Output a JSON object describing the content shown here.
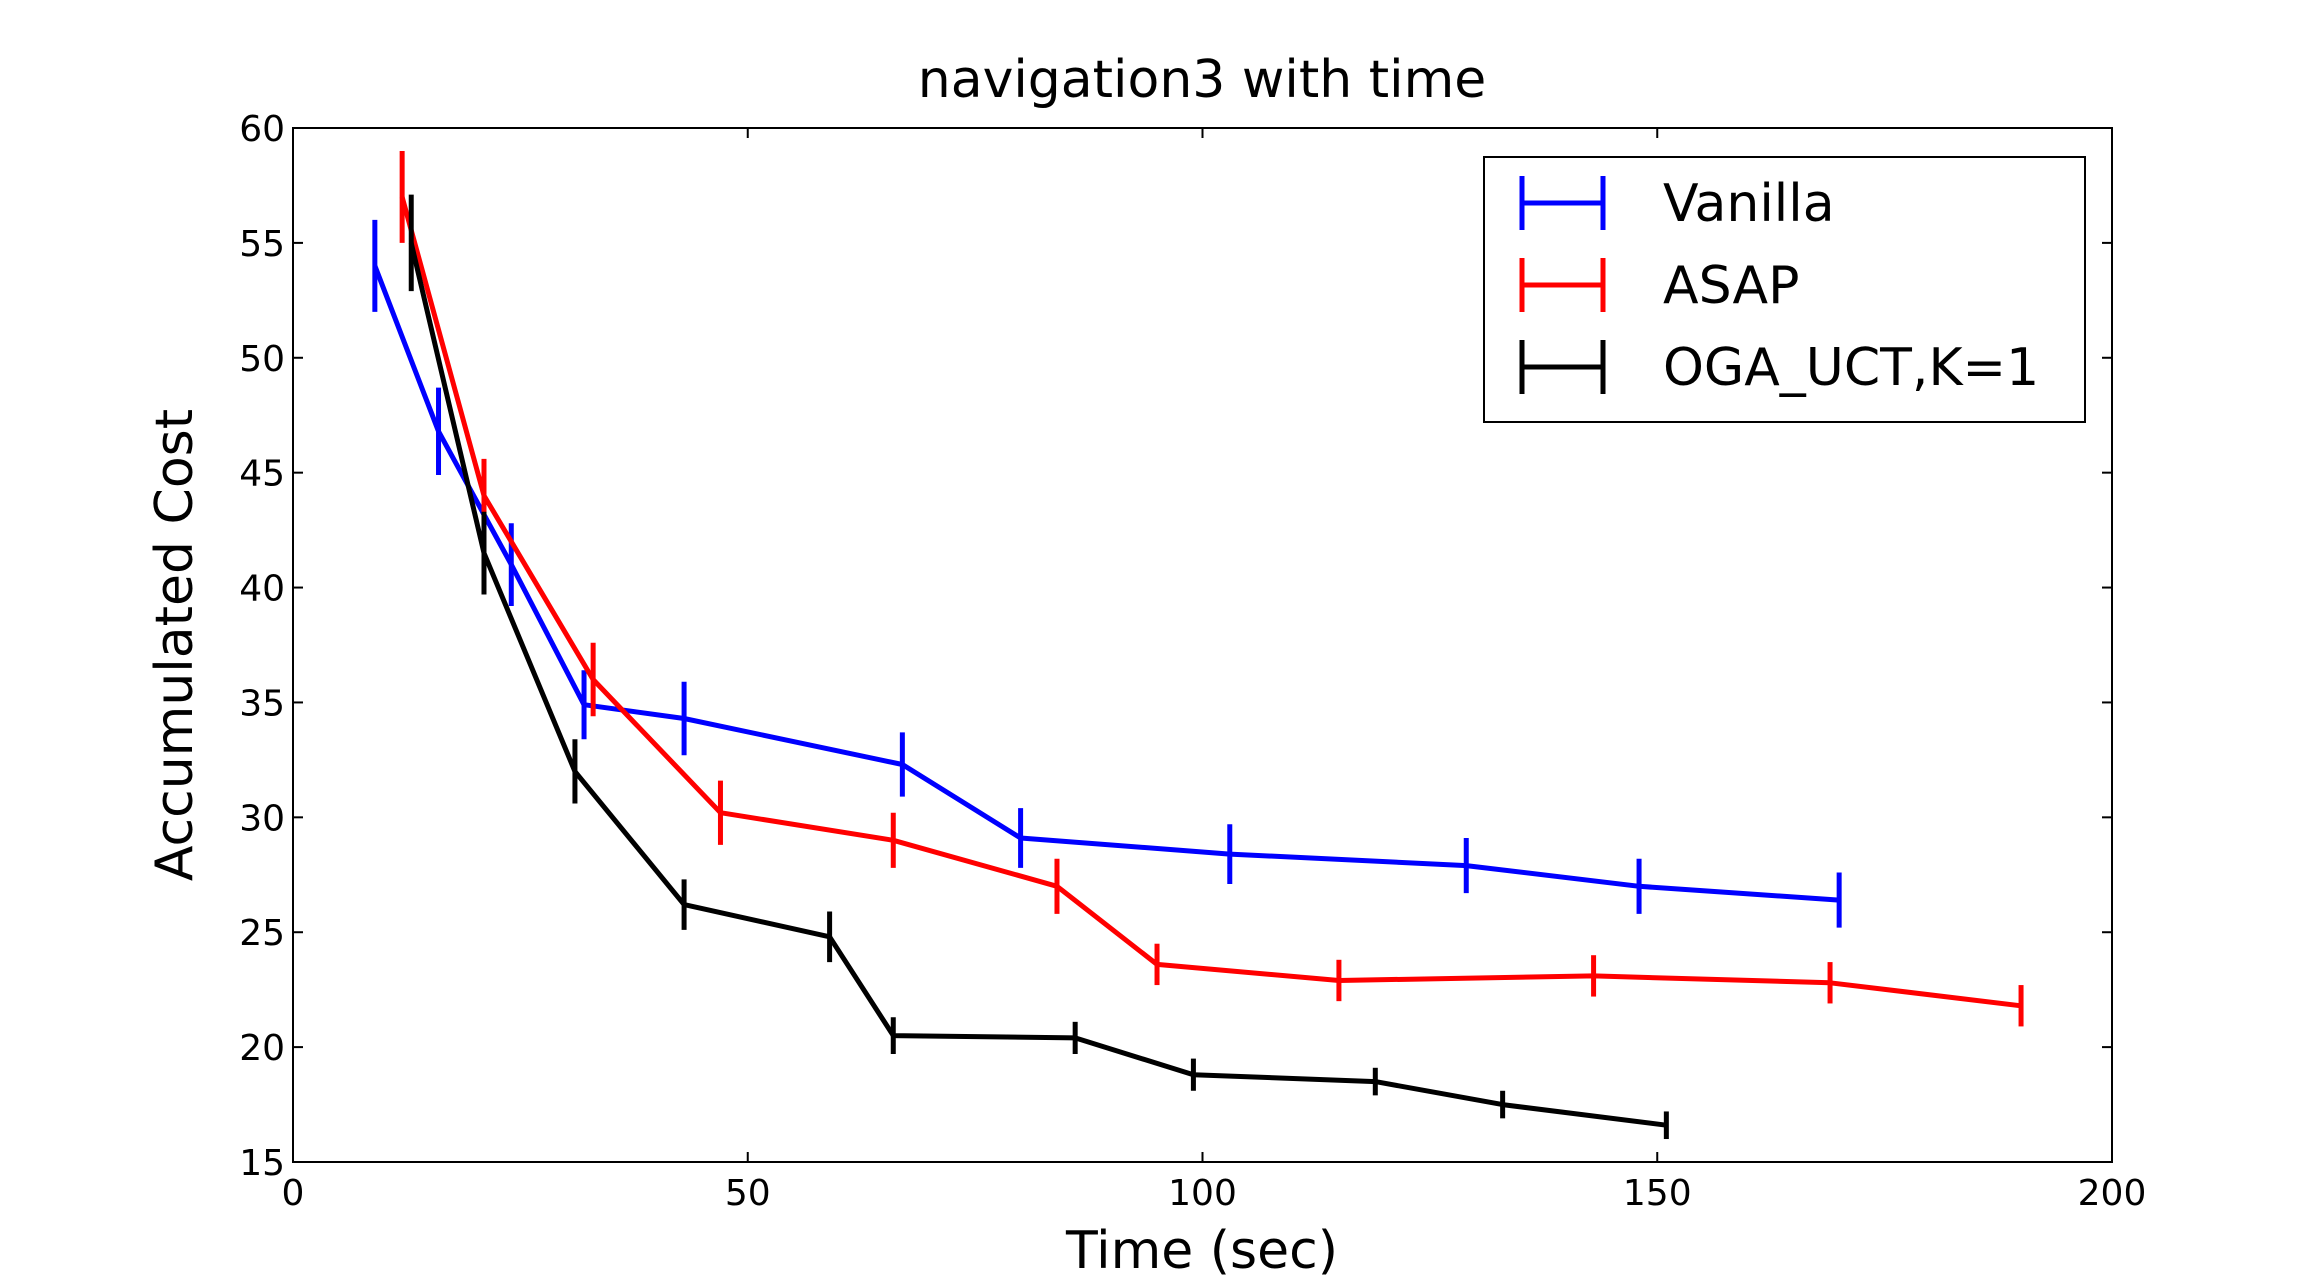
{
  "chart_data": {
    "type": "line",
    "title": "navigation3 with time",
    "xlabel": "Time (sec)",
    "ylabel": "Accumulated Cost",
    "xlim": [
      0,
      200
    ],
    "ylim": [
      15,
      60
    ],
    "xticks": [
      "0",
      "50",
      "100",
      "150",
      "200"
    ],
    "yticks": [
      "15",
      "20",
      "25",
      "30",
      "35",
      "40",
      "45",
      "50",
      "55",
      "60"
    ],
    "grid": false,
    "legend_position": "top-right",
    "series": [
      {
        "name": "Vanilla",
        "color": "#0000ff",
        "x": [
          9,
          16,
          24,
          32,
          43,
          67,
          80,
          103,
          129,
          148,
          170
        ],
        "y": [
          54.0,
          46.8,
          41.0,
          34.9,
          34.3,
          32.3,
          29.1,
          28.4,
          27.9,
          27.0,
          26.4
        ],
        "err": [
          2.0,
          1.9,
          1.8,
          1.5,
          1.6,
          1.4,
          1.3,
          1.3,
          1.2,
          1.2,
          1.2
        ]
      },
      {
        "name": "ASAP",
        "color": "#ff0000",
        "x": [
          12,
          21,
          33,
          47,
          66,
          84,
          95,
          115,
          143,
          169,
          190
        ],
        "y": [
          57.0,
          44.0,
          36.0,
          30.2,
          29.0,
          27.0,
          23.6,
          22.9,
          23.1,
          22.8,
          21.8
        ],
        "err": [
          2.0,
          1.6,
          1.6,
          1.4,
          1.2,
          1.2,
          0.9,
          0.9,
          0.9,
          0.9,
          0.9
        ]
      },
      {
        "name": "OGA_UCT,K=1",
        "color": "#000000",
        "x": [
          13,
          21,
          31,
          43,
          59,
          66,
          86,
          99,
          119,
          133,
          151
        ],
        "y": [
          55.0,
          41.5,
          32.0,
          26.2,
          24.8,
          20.5,
          20.4,
          18.8,
          18.5,
          17.5,
          16.6
        ],
        "err": [
          2.1,
          1.8,
          1.4,
          1.1,
          1.1,
          0.8,
          0.7,
          0.7,
          0.6,
          0.6,
          0.6
        ]
      }
    ]
  }
}
